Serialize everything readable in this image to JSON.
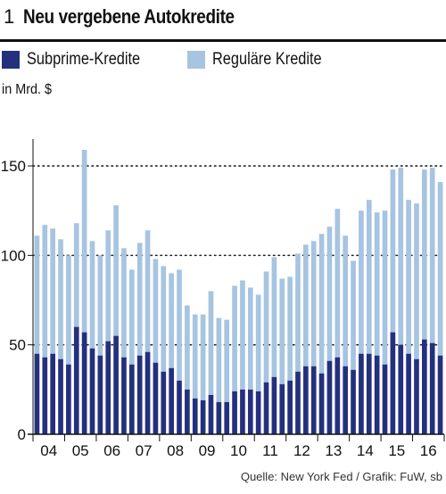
{
  "header": {
    "number": "1",
    "title": "Neu vergebene Autokredite"
  },
  "legend": {
    "subprime_label": "Subprime-Kredite",
    "regular_label": "Reguläre Kredite"
  },
  "unit_label": "in Mrd. $",
  "source": "Quelle: New York Fed / Grafik: FuW, sb",
  "colors": {
    "subprime": "#24307e",
    "regular": "#a7c4e1",
    "text": "#111111"
  },
  "chart_data": {
    "type": "bar",
    "stacked": true,
    "title": "Neu vergebene Autokredite",
    "ylabel": "in Mrd. $",
    "xlabel": "",
    "ylim": [
      0,
      160
    ],
    "yticks": [
      0,
      50,
      100,
      150
    ],
    "gridlines": [
      50,
      100,
      150
    ],
    "year_labels": [
      "04",
      "05",
      "06",
      "07",
      "08",
      "09",
      "10",
      "11",
      "12",
      "13",
      "14",
      "15",
      "16"
    ],
    "series": [
      {
        "name": "Subprime-Kredite",
        "values": [
          45,
          43,
          45,
          42,
          39,
          60,
          57,
          48,
          44,
          52,
          55,
          43,
          39,
          44,
          46,
          40,
          35,
          37,
          30,
          25,
          20,
          19,
          22,
          18,
          18,
          24,
          25,
          25,
          24,
          29,
          32,
          28,
          30,
          35,
          38,
          38,
          34,
          41,
          43,
          38,
          36,
          45,
          45,
          44,
          39,
          57,
          50,
          45,
          42,
          53,
          51,
          44
        ]
      },
      {
        "name": "Reguläre Kredite",
        "values": [
          66,
          74,
          70,
          67,
          61,
          58,
          102,
          60,
          56,
          62,
          73,
          61,
          53,
          63,
          68,
          58,
          59,
          53,
          62,
          47,
          47,
          48,
          58,
          47,
          46,
          59,
          61,
          57,
          54,
          62,
          67,
          59,
          58,
          66,
          68,
          70,
          78,
          75,
          83,
          73,
          61,
          80,
          86,
          80,
          86,
          91,
          99,
          86,
          87,
          95,
          98,
          97
        ]
      }
    ]
  }
}
